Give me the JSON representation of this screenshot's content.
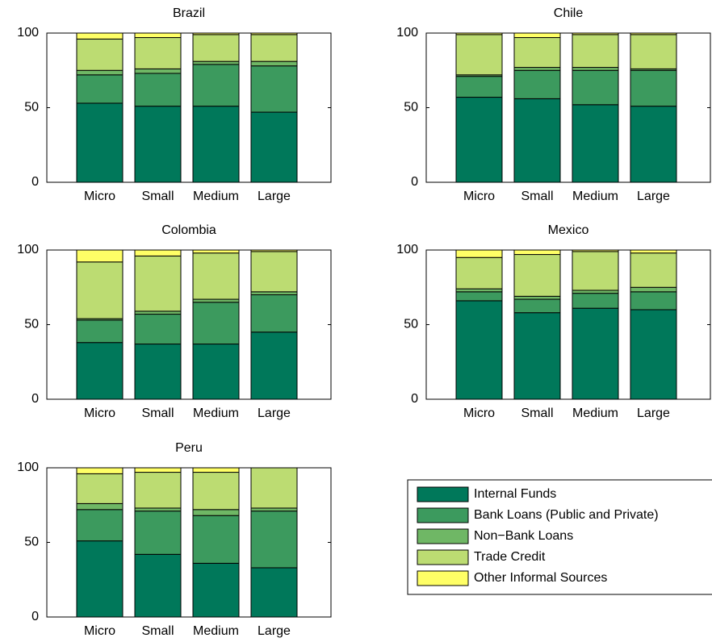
{
  "chart_data": [
    {
      "type": "bar",
      "stacked": true,
      "title": "Brazil",
      "categories": [
        "Micro",
        "Small",
        "Medium",
        "Large"
      ],
      "series": [
        {
          "name": "Internal Funds",
          "color": "#00785a",
          "values": [
            53,
            51,
            51,
            47
          ]
        },
        {
          "name": "Bank Loans (Public and Private)",
          "color": "#3c9a5e",
          "values": [
            19,
            22,
            28,
            31
          ]
        },
        {
          "name": "Non−Bank Loans",
          "color": "#6fb765",
          "values": [
            3,
            3,
            2,
            3
          ]
        },
        {
          "name": "Trade Credit",
          "color": "#bcdc72",
          "values": [
            21,
            21,
            18,
            18
          ]
        },
        {
          "name": "Other Informal Sources",
          "color": "#ffff66",
          "values": [
            4,
            3,
            1,
            1
          ]
        }
      ],
      "ylim": [
        0,
        100
      ],
      "yticks": [
        0,
        50,
        100
      ]
    },
    {
      "type": "bar",
      "stacked": true,
      "title": "Chile",
      "categories": [
        "Micro",
        "Small",
        "Medium",
        "Large"
      ],
      "series": [
        {
          "name": "Internal Funds",
          "color": "#00785a",
          "values": [
            57,
            56,
            52,
            51
          ]
        },
        {
          "name": "Bank Loans (Public and Private)",
          "color": "#3c9a5e",
          "values": [
            14,
            19,
            23,
            24
          ]
        },
        {
          "name": "Non−Bank Loans",
          "color": "#6fb765",
          "values": [
            1,
            2,
            2,
            1
          ]
        },
        {
          "name": "Trade Credit",
          "color": "#bcdc72",
          "values": [
            27,
            20,
            22,
            23
          ]
        },
        {
          "name": "Other Informal Sources",
          "color": "#ffff66",
          "values": [
            1,
            3,
            1,
            1
          ]
        }
      ],
      "ylim": [
        0,
        100
      ],
      "yticks": [
        0,
        50,
        100
      ]
    },
    {
      "type": "bar",
      "stacked": true,
      "title": "Colombia",
      "categories": [
        "Micro",
        "Small",
        "Medium",
        "Large"
      ],
      "series": [
        {
          "name": "Internal Funds",
          "color": "#00785a",
          "values": [
            38,
            37,
            37,
            45
          ]
        },
        {
          "name": "Bank Loans (Public and Private)",
          "color": "#3c9a5e",
          "values": [
            15,
            20,
            28,
            25
          ]
        },
        {
          "name": "Non−Bank Loans",
          "color": "#6fb765",
          "values": [
            1,
            2,
            2,
            2
          ]
        },
        {
          "name": "Trade Credit",
          "color": "#bcdc72",
          "values": [
            38,
            37,
            31,
            27
          ]
        },
        {
          "name": "Other Informal Sources",
          "color": "#ffff66",
          "values": [
            8,
            4,
            2,
            1
          ]
        }
      ],
      "ylim": [
        0,
        100
      ],
      "yticks": [
        0,
        50,
        100
      ]
    },
    {
      "type": "bar",
      "stacked": true,
      "title": "Mexico",
      "categories": [
        "Micro",
        "Small",
        "Medium",
        "Large"
      ],
      "series": [
        {
          "name": "Internal Funds",
          "color": "#00785a",
          "values": [
            66,
            58,
            61,
            60
          ]
        },
        {
          "name": "Bank Loans (Public and Private)",
          "color": "#3c9a5e",
          "values": [
            6,
            9,
            10,
            12
          ]
        },
        {
          "name": "Non−Bank Loans",
          "color": "#6fb765",
          "values": [
            2,
            2,
            2,
            3
          ]
        },
        {
          "name": "Trade Credit",
          "color": "#bcdc72",
          "values": [
            21,
            28,
            26,
            23
          ]
        },
        {
          "name": "Other Informal Sources",
          "color": "#ffff66",
          "values": [
            5,
            3,
            1,
            2
          ]
        }
      ],
      "ylim": [
        0,
        100
      ],
      "yticks": [
        0,
        50,
        100
      ]
    },
    {
      "type": "bar",
      "stacked": true,
      "title": "Peru",
      "categories": [
        "Micro",
        "Small",
        "Medium",
        "Large"
      ],
      "series": [
        {
          "name": "Internal Funds",
          "color": "#00785a",
          "values": [
            51,
            42,
            36,
            33
          ]
        },
        {
          "name": "Bank Loans (Public and Private)",
          "color": "#3c9a5e",
          "values": [
            21,
            29,
            32,
            38
          ]
        },
        {
          "name": "Non−Bank Loans",
          "color": "#6fb765",
          "values": [
            4,
            2,
            4,
            2
          ]
        },
        {
          "name": "Trade Credit",
          "color": "#bcdc72",
          "values": [
            20,
            24,
            25,
            27
          ]
        },
        {
          "name": "Other Informal Sources",
          "color": "#ffff66",
          "values": [
            4,
            3,
            3,
            0
          ]
        }
      ],
      "ylim": [
        0,
        100
      ],
      "yticks": [
        0,
        50,
        100
      ]
    }
  ]
}
